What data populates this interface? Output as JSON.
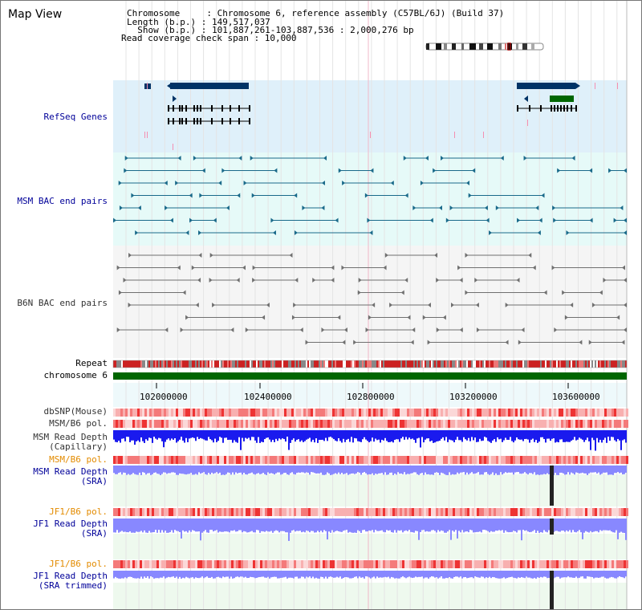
{
  "title": "Map View",
  "info": {
    "chromosome_line": "Chromosome     : Chromosome 6, reference assembly (C57BL/6J) (Build 37)",
    "length_line": "Length (b.p.) : 149,517,037",
    "show_line": "  Show (b.p.) : 101,887,261-103,887,536 : 2,000,276 bp",
    "coverage_line": "Read coverage check span : 10,000"
  },
  "track_labels": {
    "refseq": "RefSeq Genes",
    "msm_bac": "MSM BAC end pairs",
    "b6n_bac": "B6N BAC end pairs",
    "repeat": "Repeat",
    "chromosome": "chromosome 6",
    "dbsnp": "dbSNP(Mouse)",
    "msm_b6_pol_1": "MSM/B6 pol.",
    "msm_depth_cap_1": "MSM Read Depth",
    "msm_depth_cap_2": "(Capillary)",
    "msm_b6_pol_2": "MSM/B6 pol.",
    "msm_depth_sra_1": "MSM Read Depth",
    "msm_depth_sra_2": "(SRA)",
    "jf1_b6_pol_1": "JF1/B6 pol.",
    "jf1_depth_sra_1": "JF1 Read Depth",
    "jf1_depth_sra_2": "(SRA)",
    "jf1_b6_pol_2": "JF1/B6 pol.",
    "jf1_depth_trim_1": "JF1 Read Depth",
    "jf1_depth_trim_2": "(SRA trimmed)"
  },
  "axis": {
    "ticks": [
      "102000000",
      "102400000",
      "102800000",
      "103200000",
      "103600000"
    ]
  },
  "colors": {
    "refseq_bg": "#dff0fa",
    "msm_bac_bg": "#e6faf8",
    "b6n_bac_bg": "#f5f5f5",
    "gene": "#003366",
    "gene_green": "#006600",
    "msm_bac": "#1a6a8a",
    "b6n_bac": "#707070",
    "chromosome": "#006600",
    "depth_cap": "#1a1aee",
    "depth_sra": "#8888ff",
    "pol_red": "#ee3333"
  }
}
